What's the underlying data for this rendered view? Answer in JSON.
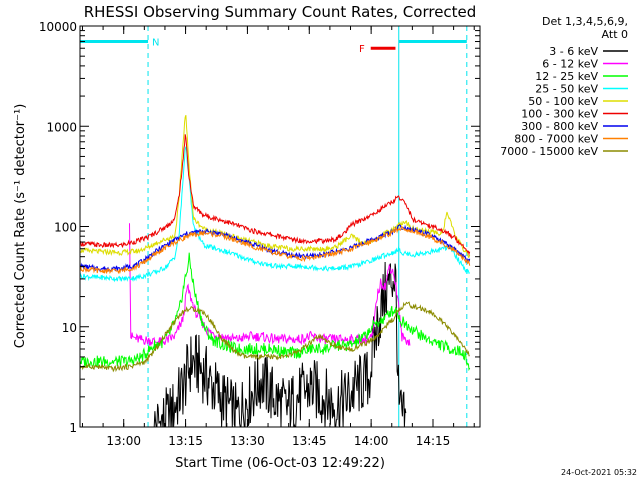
{
  "chart_data": {
    "type": "line",
    "title": "RHESSI Observing Summary Count Rates, Corrected",
    "xlabel": "Start Time (06-Oct-03 12:49:22)",
    "ylabel": "Corrected Count Rate (s⁻¹ detector⁻¹)",
    "x_unit": "minutes after 12:49:22",
    "xlim": [
      0,
      97
    ],
    "ylim": [
      1,
      10000
    ],
    "yscale": "log",
    "x_ticks": [
      {
        "x": 10.6,
        "label": "13:00"
      },
      {
        "x": 25.6,
        "label": "13:15"
      },
      {
        "x": 40.6,
        "label": "13:30"
      },
      {
        "x": 55.6,
        "label": "13:45"
      },
      {
        "x": 70.6,
        "label": "14:00"
      },
      {
        "x": 85.6,
        "label": "14:15"
      }
    ],
    "y_ticks": [
      {
        "y": 1,
        "label": "1"
      },
      {
        "y": 10,
        "label": "10"
      },
      {
        "y": 100,
        "label": "100"
      },
      {
        "y": 1000,
        "label": "1000"
      },
      {
        "y": 10000,
        "label": "10000"
      }
    ],
    "legend": {
      "position": "top-right",
      "header": [
        "Det 1,3,4,5,6,9,",
        "Att 0"
      ]
    },
    "annotations": [
      {
        "label": "N",
        "kind": "night",
        "x_start": 0,
        "x_end": 16.5,
        "y": 7000,
        "color": "#00e5ee"
      },
      {
        "label": "",
        "kind": "night",
        "x_start": 77.3,
        "x_end": 93.8,
        "y": 7000,
        "color": "#00e5ee"
      },
      {
        "label": "F",
        "kind": "flare",
        "x_start": 70.5,
        "x_end": 76.5,
        "y": 6000,
        "color": "#ee0000"
      }
    ],
    "markers": [
      {
        "x": 16.5,
        "style": "dashed",
        "color": "#00e5ee"
      },
      {
        "x": 77.3,
        "style": "solid",
        "color": "#00e5ee"
      },
      {
        "x": 93.8,
        "style": "dashed",
        "color": "#00e5ee"
      }
    ],
    "series": [
      {
        "name": "3 - 6 keV",
        "color": "#000000",
        "x": [
          18,
          22,
          25,
          27,
          29,
          31,
          34,
          38,
          41,
          44,
          47,
          50,
          53,
          56,
          59,
          62,
          65,
          67,
          70,
          72,
          74,
          75.5,
          76.5,
          77.3,
          79
        ],
        "values": [
          1,
          1.3,
          2.5,
          4.5,
          4,
          3,
          2,
          1.3,
          2,
          3,
          2,
          1.5,
          2,
          2.5,
          2,
          1.6,
          2,
          2.5,
          3,
          10,
          22,
          30,
          32,
          1.5,
          1
        ]
      },
      {
        "name": "6 - 12 keV",
        "color": "#ff00ff",
        "x": [
          12,
          12.3,
          14,
          20,
          23,
          25,
          26,
          28,
          31,
          34,
          38,
          41,
          44,
          47,
          50,
          53,
          56,
          59,
          62,
          65,
          68,
          70,
          71,
          72,
          73,
          74,
          75,
          76,
          77,
          78,
          80
        ],
        "values": [
          120,
          8,
          7.5,
          7,
          8,
          12,
          25,
          14,
          9,
          8,
          7.5,
          8,
          8,
          7.5,
          7.5,
          7.5,
          8,
          7.5,
          7.5,
          7.5,
          7.5,
          7.5,
          8,
          20,
          28,
          25,
          40,
          35,
          20,
          8,
          7
        ]
      },
      {
        "name": "12 - 25 keV",
        "color": "#00ff00",
        "x": [
          0,
          5,
          10,
          12,
          15,
          18,
          20,
          22,
          24,
          25.5,
          26.5,
          28,
          30,
          32,
          35,
          38,
          41,
          44,
          47,
          50,
          53,
          56,
          59,
          62,
          65,
          67,
          69,
          70,
          72,
          74,
          75,
          76,
          77,
          77.3,
          80,
          83,
          86,
          90,
          93,
          94.5
        ],
        "values": [
          4.5,
          4.5,
          4.5,
          4.5,
          5,
          6.5,
          7,
          9,
          14,
          30,
          48,
          20,
          10,
          7.5,
          6.5,
          6,
          6,
          6,
          6,
          5.5,
          5.5,
          6,
          6,
          6.5,
          6.5,
          7,
          8,
          9,
          11,
          12,
          14,
          14.5,
          15,
          12,
          10,
          8,
          7,
          6,
          5.5,
          3.8
        ]
      },
      {
        "name": "25 - 50 keV",
        "color": "#00ffff",
        "x": [
          0,
          5,
          10,
          14,
          16.5,
          19,
          21,
          23,
          24,
          25,
          25.6,
          26.3,
          27.5,
          30,
          33,
          36,
          39,
          42,
          45,
          48,
          51,
          54,
          57,
          60,
          62,
          64,
          66,
          68,
          70,
          72,
          74,
          76,
          77.3,
          78,
          81,
          84,
          87,
          88,
          90,
          92,
          94.5
        ],
        "values": [
          32,
          31,
          30,
          31,
          33,
          36,
          40,
          50,
          80,
          300,
          680,
          350,
          100,
          65,
          60,
          55,
          50,
          45,
          42,
          40,
          40,
          40,
          39,
          38,
          38,
          39,
          40,
          42,
          45,
          48,
          52,
          55,
          58,
          55,
          52,
          55,
          58,
          62,
          60,
          45,
          33
        ]
      },
      {
        "name": "50 - 100 keV",
        "color": "#dddd00",
        "x": [
          0,
          5,
          10,
          14,
          16.5,
          19,
          21,
          23,
          24,
          25,
          25.6,
          26.3,
          27.5,
          30,
          33,
          36,
          39,
          42,
          45,
          48,
          51,
          54,
          57,
          60,
          62,
          64,
          66,
          68,
          70,
          72,
          74,
          76,
          77.3,
          79,
          81,
          84,
          87,
          88,
          89,
          91,
          93,
          94.5
        ],
        "values": [
          58,
          56,
          55,
          57,
          62,
          70,
          75,
          80,
          180,
          700,
          1400,
          500,
          120,
          95,
          88,
          82,
          75,
          70,
          65,
          62,
          60,
          60,
          60,
          60,
          62,
          72,
          80,
          70,
          68,
          75,
          85,
          95,
          105,
          110,
          95,
          90,
          85,
          90,
          140,
          80,
          60,
          50
        ]
      },
      {
        "name": "100 - 300 keV",
        "color": "#ee0000",
        "x": [
          0,
          5,
          10,
          13,
          16.5,
          19,
          21,
          23,
          24,
          25,
          25.6,
          26.3,
          27.5,
          30,
          33,
          36,
          39,
          42,
          45,
          48,
          51,
          54,
          57,
          60,
          62,
          64,
          66,
          68,
          70,
          72,
          74,
          76,
          77.3,
          79,
          81,
          84,
          87,
          90,
          92,
          94.5
        ],
        "values": [
          68,
          65,
          65,
          70,
          78,
          90,
          100,
          120,
          200,
          450,
          900,
          350,
          160,
          130,
          120,
          110,
          100,
          90,
          85,
          80,
          75,
          72,
          72,
          72,
          75,
          85,
          105,
          115,
          125,
          140,
          160,
          180,
          200,
          165,
          115,
          105,
          95,
          82,
          70,
          55
        ]
      },
      {
        "name": "300 - 800 keV",
        "color": "#0000ee",
        "x": [
          0,
          5,
          10,
          14,
          18,
          22,
          26,
          30,
          34,
          38,
          42,
          46,
          50,
          54,
          58,
          62,
          66,
          70,
          73,
          76,
          77.3,
          80,
          84,
          88,
          91,
          94.5
        ],
        "values": [
          40,
          38,
          38,
          42,
          55,
          70,
          85,
          90,
          85,
          75,
          66,
          58,
          53,
          50,
          52,
          56,
          62,
          72,
          80,
          90,
          100,
          95,
          85,
          70,
          58,
          45
        ]
      },
      {
        "name": "800 - 7000 keV",
        "color": "#ff8000",
        "x": [
          0,
          5,
          10,
          14,
          18,
          22,
          26,
          30,
          34,
          38,
          42,
          46,
          50,
          54,
          58,
          62,
          66,
          70,
          73,
          76,
          77.3,
          80,
          84,
          88,
          91,
          94.5
        ],
        "values": [
          38,
          36,
          36,
          40,
          52,
          66,
          80,
          86,
          82,
          72,
          63,
          56,
          51,
          48,
          50,
          54,
          60,
          70,
          78,
          88,
          96,
          92,
          82,
          68,
          56,
          43
        ]
      },
      {
        "name": "7000 - 15000 keV",
        "color": "#8b8b00",
        "x": [
          0,
          4,
          8,
          12,
          16,
          19,
          22,
          24,
          26,
          28,
          30,
          32,
          34,
          36,
          38,
          40,
          42,
          44,
          46,
          48,
          50,
          52,
          54,
          56,
          58,
          60,
          62,
          64,
          66,
          68,
          70,
          72,
          74,
          76,
          77.3,
          79,
          81,
          83,
          85,
          87,
          89,
          91,
          93,
          94.5
        ],
        "values": [
          4,
          4,
          3.8,
          4,
          4.5,
          6.5,
          10,
          13,
          15,
          15,
          14,
          11,
          8,
          6.5,
          5.5,
          5,
          5,
          5,
          5,
          5,
          5,
          5.5,
          6,
          7,
          8,
          7,
          6.5,
          6,
          6,
          6.5,
          7,
          8,
          10,
          12,
          15,
          17,
          16,
          15,
          14,
          12,
          10,
          8,
          6.5,
          5
        ]
      }
    ]
  },
  "footer": {
    "date": "24-Oct-2021 05:32"
  }
}
